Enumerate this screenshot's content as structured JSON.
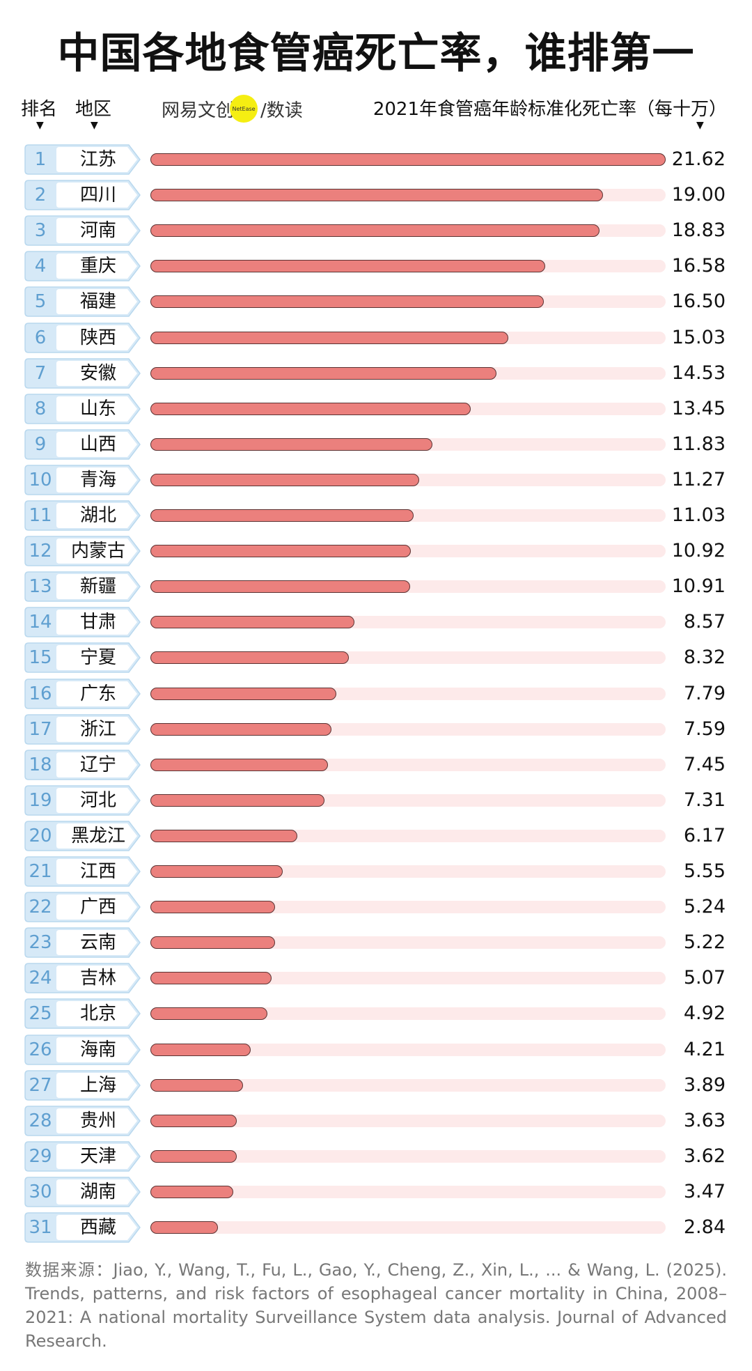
{
  "chart_data": {
    "type": "bar",
    "orientation": "horizontal",
    "title": "中国各地食管癌死亡率，谁排第一",
    "column_headers": {
      "rank": "排名",
      "region": "地区",
      "value": "2021年食管癌年龄标准化死亡率（每十万）"
    },
    "xlim": [
      0,
      21.62
    ],
    "categories": [
      "江苏",
      "四川",
      "河南",
      "重庆",
      "福建",
      "陕西",
      "安徽",
      "山东",
      "山西",
      "青海",
      "湖北",
      "内蒙古",
      "新疆",
      "甘肃",
      "宁夏",
      "广东",
      "浙江",
      "辽宁",
      "河北",
      "黑龙江",
      "江西",
      "广西",
      "云南",
      "吉林",
      "北京",
      "海南",
      "上海",
      "贵州",
      "天津",
      "湖南",
      "西藏"
    ],
    "values": [
      "21.62",
      "19.00",
      "18.83",
      "16.58",
      "16.50",
      "15.03",
      "14.53",
      "13.45",
      "11.83",
      "11.27",
      "11.03",
      "10.92",
      "10.91",
      "8.57",
      "8.32",
      "7.79",
      "7.59",
      "7.45",
      "7.31",
      "6.17",
      "5.55",
      "5.24",
      "5.22",
      "5.07",
      "4.92",
      "4.21",
      "3.89",
      "3.63",
      "3.62",
      "3.47",
      "2.84"
    ],
    "colors": {
      "bar": "#eb807d",
      "track": "#fdeaea",
      "rank_box": "#d6e9f7",
      "rank_text": "#5f9fd0"
    }
  },
  "logo": {
    "text_left": "网易文创",
    "badge": "NetEase",
    "text_right": "/数读"
  },
  "source": "数据来源：Jiao, Y., Wang, T., Fu, L., Gao, Y., Cheng, Z., Xin, L., ... & Wang, L. (2025). Trends, patterns, and risk factors of esophageal cancer mortality in China, 2008–2021: A national mortality Surveillance System data analysis. Journal of Advanced Research."
}
